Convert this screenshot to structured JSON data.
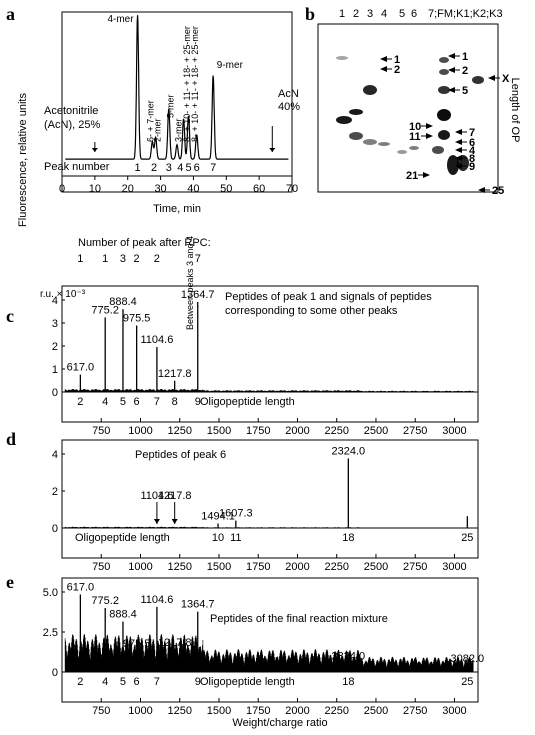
{
  "panel_labels": {
    "a": "a",
    "b": "b",
    "c": "c",
    "d": "d",
    "e": "e"
  },
  "chart_data": [
    {
      "id": "a",
      "type": "line",
      "ylabel": "Fluorescence, relative units",
      "xlabel": "Time, min",
      "xticks": [
        0,
        10,
        20,
        30,
        40,
        50,
        60,
        70
      ],
      "xlim": [
        0,
        70
      ],
      "annotations": {
        "acn_start": "Acetonitrile",
        "acn_start2": "(AcN), 25%",
        "acn_end": "AcN",
        "acn_end2": "40%",
        "peak_number_label": "Peak number"
      },
      "peak_numbers": [
        "1",
        "2",
        "3",
        "4",
        "5",
        "6",
        "7"
      ],
      "peak_number_x": [
        23,
        28,
        32.5,
        36,
        38.5,
        41,
        46
      ],
      "peak_labels": [
        {
          "text": "4-mer",
          "x": 23
        },
        {
          "text": "6- + 7-mer",
          "x": 27
        },
        {
          "text": "2-mer",
          "x": 29
        },
        {
          "text": "5-mer",
          "x": 33
        },
        {
          "text": "3-mer",
          "x": 35.5
        },
        {
          "text": "8- + 10- + 11- + 18- + 25-mer",
          "x": 38
        },
        {
          "text": "8- + 10- + 11- + 18- + 25-mer",
          "x": 40.5
        },
        {
          "text": "9-mer",
          "x": 46.5
        }
      ],
      "peaks": [
        {
          "t": 23.0,
          "h": 1.0
        },
        {
          "t": 27.5,
          "h": 0.12
        },
        {
          "t": 28.5,
          "h": 0.15
        },
        {
          "t": 32.5,
          "h": 0.35
        },
        {
          "t": 35.0,
          "h": 0.1
        },
        {
          "t": 37.0,
          "h": 0.28
        },
        {
          "t": 38.5,
          "h": 0.3
        },
        {
          "t": 41.0,
          "h": 0.17
        },
        {
          "t": 46.0,
          "h": 0.58
        }
      ]
    },
    {
      "id": "b",
      "type": "gel",
      "lane_labels": [
        "1",
        "2",
        "3",
        "4",
        "5",
        "6",
        "7;FM;K1;K2;K3"
      ],
      "ylabel": "Length of OP",
      "band_labels": [
        "1",
        "2",
        "1",
        "2",
        "5",
        "10",
        "11",
        "7",
        "6",
        "4",
        "8",
        "9",
        "21",
        "25",
        "X"
      ]
    },
    {
      "id": "c",
      "type": "mass-spectrum",
      "header": "Number of peak after RPC:",
      "rpc_numbers": [
        "1",
        "1",
        "3",
        "2",
        "2",
        "7"
      ],
      "ylabel": "r.u. × 10⁻³",
      "yticks": [
        "0",
        "1",
        "2",
        "3",
        "4"
      ],
      "between_label": "Between peaks 3 and 4",
      "legend": "Peptides of peak 1 and signals of peptides",
      "legend2": "corresponding to some other peaks",
      "length_label": "Oligopeptide length",
      "length_numbers": [
        "2",
        "4",
        "5",
        "6",
        "7",
        "8",
        "9"
      ],
      "length_x": [
        617,
        775,
        888,
        975,
        1104,
        1218,
        1365
      ],
      "xticks": [
        750,
        1000,
        1250,
        1500,
        1750,
        2000,
        2250,
        2500,
        2750,
        3000
      ],
      "xlim": [
        500,
        3150
      ],
      "peaks": [
        {
          "mz": 617.0,
          "v": 0.85,
          "label": "617.0"
        },
        {
          "mz": 775.2,
          "v": 3.65,
          "label": "775.2"
        },
        {
          "mz": 888.4,
          "v": 4.05,
          "label": "888.4"
        },
        {
          "mz": 975.5,
          "v": 3.25,
          "label": "975.5"
        },
        {
          "mz": 1104.6,
          "v": 2.2,
          "label": "1104.6"
        },
        {
          "mz": 1217.8,
          "v": 0.55,
          "label": "1217.8"
        },
        {
          "mz": 1364.7,
          "v": 4.4,
          "label": "1364.7"
        }
      ]
    },
    {
      "id": "d",
      "type": "mass-spectrum",
      "legend": "Peptides of peak 6",
      "yticks": [
        "0",
        "2",
        "4"
      ],
      "length_label": "Oligopeptide length",
      "length_numbers": [
        "10",
        "11",
        "18",
        "25"
      ],
      "length_x": [
        1494,
        1607,
        2324,
        3082
      ],
      "xticks": [
        750,
        1000,
        1250,
        1500,
        1750,
        2000,
        2250,
        2500,
        2750,
        3000
      ],
      "xlim": [
        500,
        3150
      ],
      "peaks": [
        {
          "mz": 1104.6,
          "v": 0,
          "label": "1104.6",
          "arrow": true
        },
        {
          "mz": 1217.8,
          "v": 0,
          "label": "1217.8",
          "arrow": true
        },
        {
          "mz": 1494.1,
          "v": 0.3,
          "label": "1494.1"
        },
        {
          "mz": 1607.3,
          "v": 0.5,
          "label": "1607.3"
        },
        {
          "mz": 2324.0,
          "v": 4.7,
          "label": "2324.0"
        },
        {
          "mz": 3082.0,
          "v": 0.8,
          "label": ""
        }
      ]
    },
    {
      "id": "e",
      "type": "mass-spectrum",
      "legend": "Peptides of the final reaction mixture",
      "yticks": [
        "0",
        "2.5",
        "5.0"
      ],
      "xlabel": "Weight/charge ratio",
      "length_label": "Oligopeptide length",
      "length_numbers": [
        "2",
        "4",
        "5",
        "6",
        "7",
        "9",
        "18",
        "25"
      ],
      "length_x": [
        617,
        775,
        888,
        975,
        1104,
        1365,
        2324,
        3082
      ],
      "xticks": [
        750,
        1000,
        1250,
        1500,
        1750,
        2000,
        2250,
        2500,
        2750,
        3000
      ],
      "xlim": [
        500,
        3150
      ],
      "peaks": [
        {
          "mz": 617.0,
          "v": 6.3,
          "label": "617.0"
        },
        {
          "mz": 775.2,
          "v": 5.2,
          "label": "775.2"
        },
        {
          "mz": 888.4,
          "v": 4.1,
          "label": "888.4"
        },
        {
          "mz": 975.5,
          "v": 2.6,
          "label": "975.5",
          "arrow": true
        },
        {
          "mz": 1104.6,
          "v": 5.3,
          "label": "1104.6"
        },
        {
          "mz": 1217.8,
          "v": 1.8,
          "label": "1217.8"
        },
        {
          "mz": 1364.7,
          "v": 4.9,
          "label": "1364.7"
        },
        {
          "mz": 2324.0,
          "v": 0.7,
          "label": "2324.0"
        },
        {
          "mz": 3082.0,
          "v": 0.5,
          "label": "3082.0"
        }
      ]
    }
  ]
}
